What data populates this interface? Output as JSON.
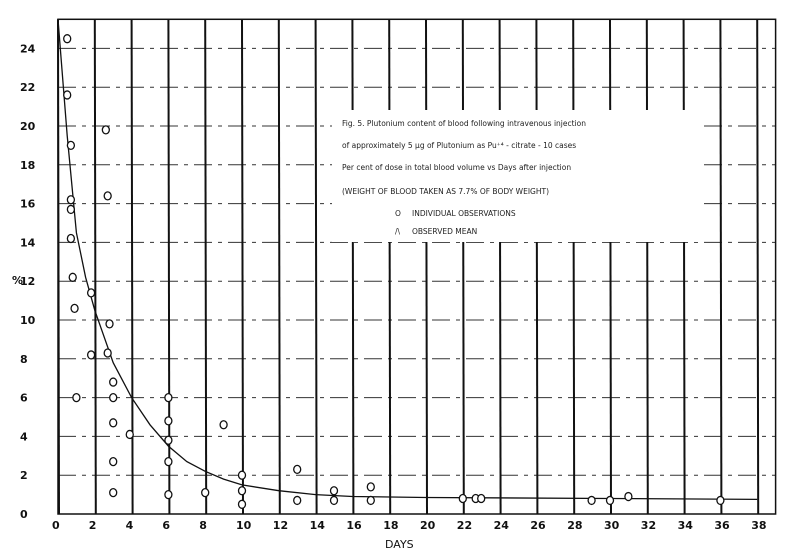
{
  "chart_data": {
    "type": "scatter",
    "title": "",
    "xlabel": "DAYS",
    "ylabel": "%",
    "xlim": [
      0,
      39
    ],
    "ylim": [
      0,
      25.5
    ],
    "grid": true,
    "x_ticks": [
      "0",
      "2",
      "4",
      "6",
      "8",
      "10",
      "12",
      "14",
      "16",
      "18",
      "20",
      "22",
      "24",
      "26",
      "28",
      "30",
      "32",
      "34",
      "36",
      "38"
    ],
    "y_ticks": [
      "0",
      "2",
      "4",
      "6",
      "8",
      "10",
      "12",
      "14",
      "16",
      "18",
      "20",
      "22",
      "24"
    ],
    "legend": {
      "placement": "top-right",
      "lines": [
        "Fig. 5. Plutonium content of blood following intravenous injection",
        "of approximately 5 µg of Plutonium as Pu⁺⁴ - citrate - 10 cases",
        "Per cent of dose in total blood volume vs Days after injection",
        "(WEIGHT OF BLOOD TAKEN AS 7.7% OF BODY WEIGHT)"
      ],
      "entries": [
        {
          "symbol": "O",
          "label": "INDIVIDUAL OBSERVATIONS"
        },
        {
          "symbol": "/\\",
          "label": "OBSERVED MEAN"
        }
      ]
    },
    "series": [
      {
        "name": "INDIVIDUAL OBSERVATIONS",
        "marker": "circle",
        "points": [
          [
            0.5,
            24.5
          ],
          [
            0.5,
            21.6
          ],
          [
            0.7,
            19.0
          ],
          [
            0.7,
            16.2
          ],
          [
            0.7,
            15.7
          ],
          [
            0.7,
            14.2
          ],
          [
            0.8,
            12.2
          ],
          [
            0.9,
            10.6
          ],
          [
            1.0,
            6.0
          ],
          [
            1.8,
            11.4
          ],
          [
            1.8,
            8.2
          ],
          [
            2.6,
            19.8
          ],
          [
            2.7,
            16.4
          ],
          [
            2.8,
            9.8
          ],
          [
            2.7,
            8.3
          ],
          [
            3.0,
            6.8
          ],
          [
            3.0,
            6.0
          ],
          [
            3.0,
            4.7
          ],
          [
            3.0,
            2.7
          ],
          [
            3.0,
            1.1
          ],
          [
            3.9,
            4.1
          ],
          [
            6.0,
            6.0
          ],
          [
            6.0,
            4.8
          ],
          [
            6.0,
            3.8
          ],
          [
            6.0,
            2.7
          ],
          [
            6.0,
            1.0
          ],
          [
            8.0,
            1.1
          ],
          [
            9.0,
            4.6
          ],
          [
            10.0,
            2.0
          ],
          [
            10.0,
            1.2
          ],
          [
            10.0,
            0.5
          ],
          [
            13.0,
            2.3
          ],
          [
            13.0,
            0.7
          ],
          [
            15.0,
            1.2
          ],
          [
            15.0,
            0.7
          ],
          [
            17.0,
            1.4
          ],
          [
            17.0,
            0.7
          ],
          [
            22.0,
            0.8
          ],
          [
            22.7,
            0.8
          ],
          [
            23.0,
            0.8
          ],
          [
            29.0,
            0.7
          ],
          [
            30.0,
            0.7
          ],
          [
            31.0,
            0.9
          ],
          [
            36.0,
            0.7
          ]
        ]
      },
      {
        "name": "OBSERVED MEAN",
        "marker": "line",
        "points": [
          [
            0,
            25.5
          ],
          [
            0.5,
            19.5
          ],
          [
            1,
            14.5
          ],
          [
            1.5,
            12.2
          ],
          [
            2,
            10.5
          ],
          [
            3,
            7.8
          ],
          [
            4,
            6.0
          ],
          [
            5,
            4.6
          ],
          [
            6,
            3.5
          ],
          [
            7,
            2.7
          ],
          [
            8,
            2.2
          ],
          [
            9,
            1.8
          ],
          [
            10,
            1.5
          ],
          [
            12,
            1.2
          ],
          [
            14,
            1.0
          ],
          [
            16,
            0.9
          ],
          [
            20,
            0.85
          ],
          [
            30,
            0.8
          ],
          [
            38,
            0.75
          ]
        ]
      }
    ],
    "colors": {
      "ink": "#111111",
      "background": "#ffffff"
    }
  }
}
